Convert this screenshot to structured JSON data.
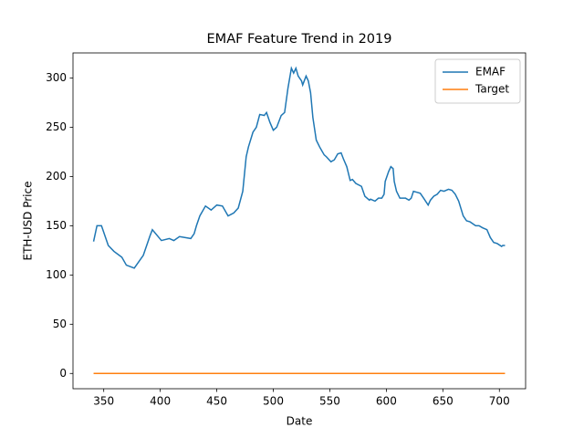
{
  "chart_data": {
    "type": "line",
    "title": "EMAF Feature Trend in 2019",
    "xlabel": "Date",
    "ylabel": "ETH-USD Price",
    "x": [
      341,
      344,
      348,
      354,
      359,
      366,
      370,
      377,
      385,
      391,
      393,
      401,
      408,
      412,
      417,
      427,
      430,
      432,
      435,
      440,
      445,
      450,
      455,
      460,
      465,
      469,
      473,
      476,
      478,
      482,
      485,
      488,
      492,
      494,
      497,
      500,
      503,
      507,
      510,
      513,
      516,
      518,
      520,
      522,
      525,
      526,
      529,
      531,
      533,
      535,
      538,
      541,
      542,
      545,
      547,
      551,
      554,
      557,
      560,
      562,
      565,
      568,
      570,
      573,
      578,
      581,
      585,
      586,
      590,
      593,
      596,
      598,
      599,
      602,
      604,
      606,
      607,
      609,
      612,
      617,
      620,
      622,
      624,
      627,
      630,
      633,
      637,
      639,
      642,
      645,
      648,
      651,
      655,
      658,
      661,
      664,
      668,
      671,
      674,
      679,
      682,
      685,
      689,
      692,
      695,
      698,
      702,
      703,
      705
    ],
    "series": [
      {
        "name": "EMAF",
        "color": "#1f77b4",
        "values": [
          134,
          150,
          150,
          130,
          124,
          118,
          110,
          107,
          120,
          140,
          146,
          135,
          137,
          135,
          139,
          137,
          142,
          150,
          160,
          170,
          166,
          171,
          170,
          160,
          163,
          168,
          185,
          220,
          230,
          245,
          250,
          263,
          262,
          265,
          255,
          247,
          250,
          262,
          265,
          290,
          310,
          305,
          310,
          302,
          297,
          293,
          302,
          297,
          285,
          260,
          237,
          230,
          228,
          222,
          220,
          215,
          217,
          223,
          224,
          218,
          210,
          196,
          197,
          193,
          190,
          180,
          176,
          177,
          175,
          178,
          178,
          182,
          195,
          205,
          210,
          208,
          195,
          185,
          178,
          178,
          176,
          178,
          185,
          184,
          183,
          178,
          171,
          176,
          180,
          182,
          186,
          185,
          187,
          186,
          182,
          175,
          160,
          155,
          154,
          150,
          150,
          148,
          146,
          138,
          133,
          132,
          129,
          130,
          130
        ]
      },
      {
        "name": "Target",
        "color": "#ff7f0e",
        "values": [
          0,
          0,
          0,
          0,
          0,
          0,
          0,
          0,
          0,
          0,
          0,
          0,
          0,
          0,
          0,
          0,
          0,
          0,
          0,
          0,
          0,
          0,
          0,
          0,
          0,
          0,
          0,
          0,
          0,
          0,
          0,
          0,
          0,
          0,
          0,
          0,
          0,
          0,
          0,
          0,
          0,
          0,
          0,
          0,
          0,
          0,
          0,
          0,
          0,
          0,
          0,
          0,
          0,
          0,
          0,
          0,
          0,
          0,
          0,
          0,
          0,
          0,
          0,
          0,
          0,
          0,
          0,
          0,
          0,
          0,
          0,
          0,
          0,
          0,
          0,
          0,
          0,
          0,
          0,
          0,
          0,
          0,
          0,
          0,
          0,
          0,
          0,
          0,
          0,
          0,
          0,
          0,
          0,
          0,
          0,
          0,
          0,
          0,
          0,
          0,
          0,
          0,
          0,
          0,
          0,
          0,
          0,
          0,
          0
        ]
      }
    ],
    "xlim": [
      322.8,
      723.2
    ],
    "xticks": [
      350,
      400,
      450,
      500,
      550,
      600,
      650,
      700
    ],
    "ylim": [
      -15.5,
      325.5
    ],
    "yticks": [
      0,
      50,
      100,
      150,
      200,
      250,
      300
    ],
    "legend": "upper right"
  }
}
